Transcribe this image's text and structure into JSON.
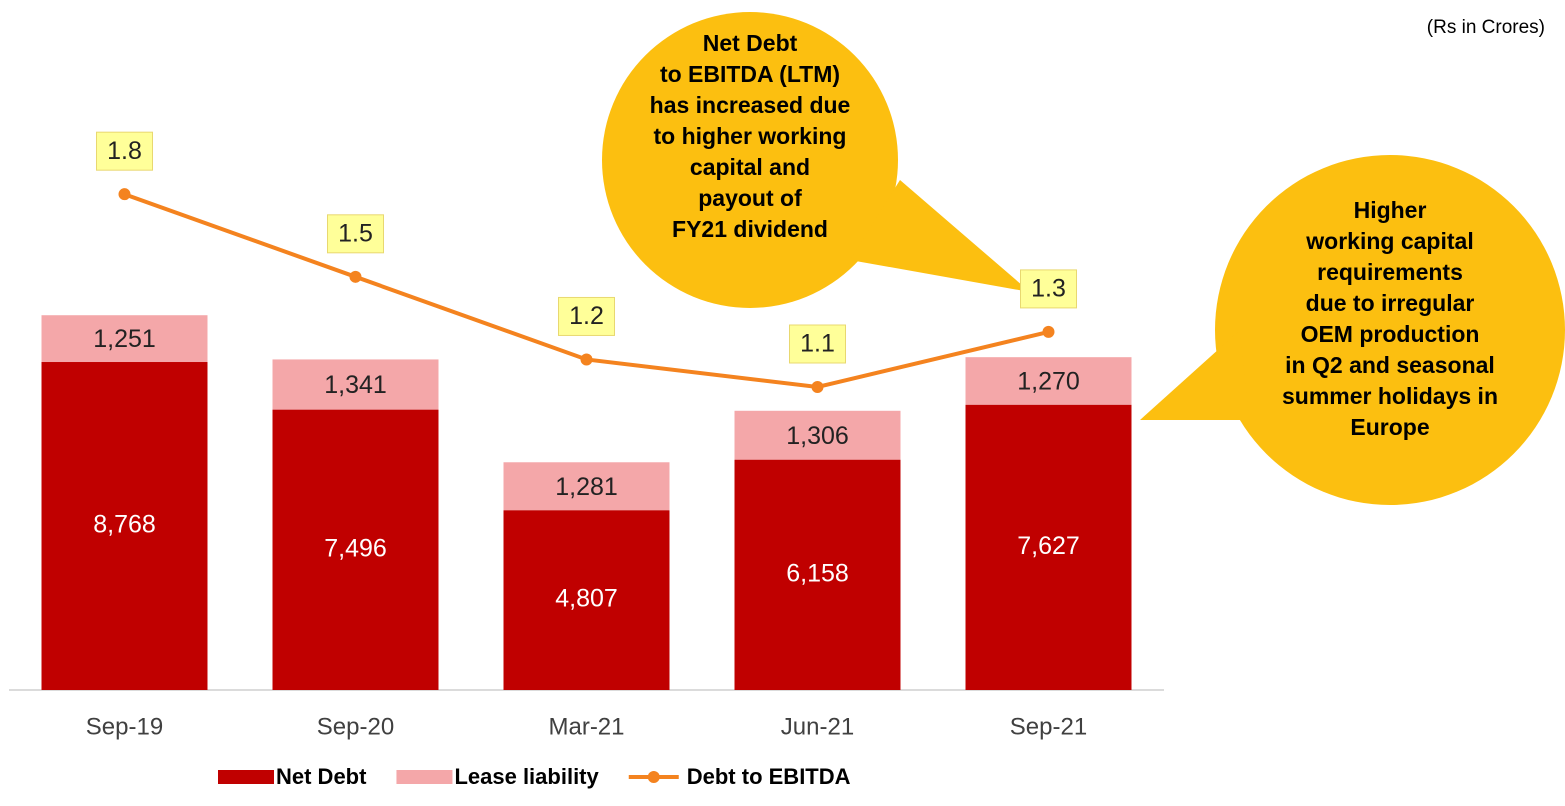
{
  "chart_data": {
    "type": "bar",
    "subtitle": "(Rs in Crores)",
    "categories": [
      "Sep-19",
      "Sep-20",
      "Mar-21",
      "Jun-21",
      "Sep-21"
    ],
    "ylim": [
      0,
      16200
    ],
    "y2lim": [
      0,
      2.2
    ],
    "series": [
      {
        "name": "Net Debt",
        "color": "#c00000",
        "values": [
          8768,
          7496,
          4807,
          6158,
          7627
        ],
        "value_labels": [
          "8,768",
          "7,496",
          "4,807",
          "6,158",
          "7,627"
        ]
      },
      {
        "name": "Lease liability",
        "color": "#f4a7a9",
        "values": [
          1251,
          1341,
          1281,
          1306,
          1270
        ],
        "value_labels": [
          "1,251",
          "1,341",
          "1,281",
          "1,306",
          "1,270"
        ]
      },
      {
        "name": "Debt to EBITDA",
        "type": "line",
        "axis": "y2",
        "color": "#f4831f",
        "values": [
          1.8,
          1.5,
          1.2,
          1.1,
          1.3
        ]
      }
    ],
    "annotations": [
      [
        "Net Debt",
        "to EBITDA (LTM)",
        "has increased due",
        "to higher working",
        "capital and",
        "payout of",
        "FY21 dividend"
      ],
      [
        "Higher",
        "working capital",
        "requirements",
        "due to irregular",
        "OEM production",
        "in Q2 and seasonal",
        "summer holidays in",
        "Europe"
      ]
    ]
  }
}
